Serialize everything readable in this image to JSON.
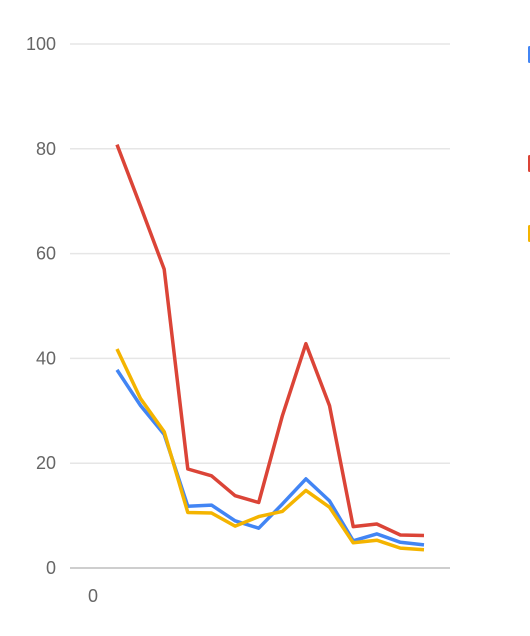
{
  "chart_data": {
    "type": "line",
    "title": "",
    "xlabel": "",
    "ylabel": "",
    "ylim": [
      0,
      100
    ],
    "yticks": [
      0,
      20,
      40,
      60,
      80,
      100
    ],
    "xticks": [
      "0"
    ],
    "grid": true,
    "legend_position": "right",
    "series": [
      {
        "color": "#4285f4",
        "values": [
          37.8,
          31.0,
          25.5,
          11.8,
          12.0,
          9.0,
          7.6,
          12.2,
          17.0,
          12.8,
          5.2,
          6.5,
          4.9,
          4.4
        ]
      },
      {
        "color": "#db4437",
        "values": [
          80.8,
          69.0,
          57.0,
          18.9,
          17.6,
          13.8,
          12.5,
          29.0,
          42.8,
          31.0,
          7.9,
          8.4,
          6.3,
          6.2
        ]
      },
      {
        "color": "#f4b400",
        "values": [
          41.8,
          32.3,
          26.0,
          10.6,
          10.5,
          8.0,
          9.8,
          10.8,
          14.8,
          11.6,
          4.8,
          5.3,
          3.8,
          3.5
        ]
      }
    ]
  }
}
